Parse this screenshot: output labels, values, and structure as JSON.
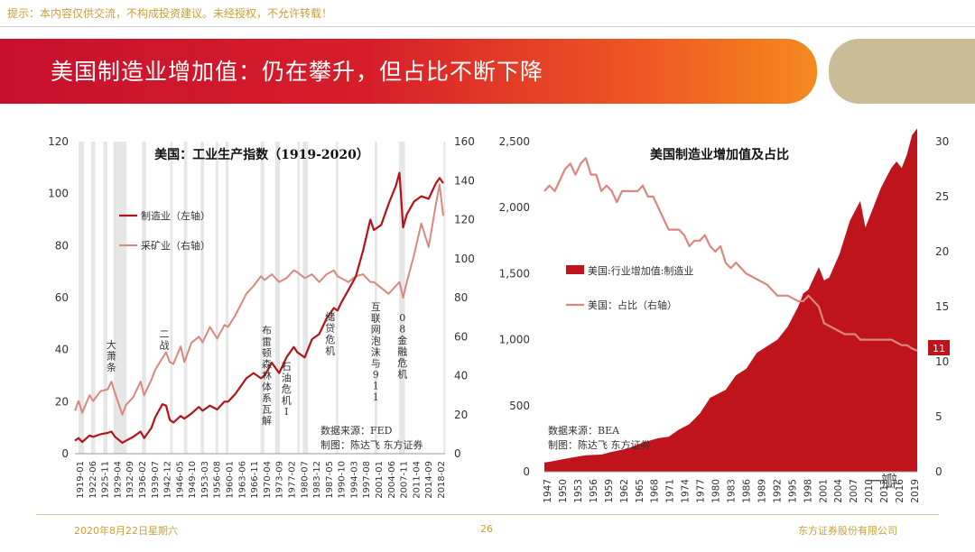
{
  "header": {
    "disclaimer": "提示：本内容仅供交流，不构成投资建议。未经授权，不允许转载！",
    "title": "美国制造业增加值：仍在攀升，但占比不断下降"
  },
  "footer": {
    "date": "2020年8月22日星期六",
    "page": "26",
    "company": "东方证券股份有限公司"
  },
  "watermark": "一瓣",
  "colors": {
    "dark_red": "#b3131b",
    "pink": "#d98880",
    "area_red": "#c0141c",
    "recession_gray": "#e6e6e6"
  },
  "chart_data": [
    {
      "type": "line",
      "title": "美国：工业生产指数（1919-2020）",
      "ylim_left": [
        0,
        120
      ],
      "yticks_left": [
        "0",
        "20",
        "40",
        "60",
        "80",
        "100",
        "120"
      ],
      "ylim_right": [
        0,
        160
      ],
      "yticks_right": [
        "0",
        "20",
        "40",
        "60",
        "80",
        "100",
        "120",
        "140",
        "160"
      ],
      "x_range": [
        1919.0,
        2020.5
      ],
      "x_tick_labels": [
        "1919-01",
        "1922-06",
        "1925-11",
        "1929-04",
        "1932-09",
        "1936-02",
        "1939-07",
        "1942-12",
        "1946-05",
        "1949-10",
        "1953-03",
        "1956-08",
        "1960-01",
        "1963-06",
        "1966-11",
        "1970-04",
        "1973-09",
        "1977-02",
        "1980-07",
        "1983-12",
        "1987-05",
        "1990-10",
        "1994-03",
        "1997-08",
        "2001-01",
        "2004-06",
        "2007-11",
        "2011-04",
        "2014-09",
        "2018-02"
      ],
      "recessions": [
        [
          1920.0,
          1921.5
        ],
        [
          1923.4,
          1924.6
        ],
        [
          1926.8,
          1927.9
        ],
        [
          1929.6,
          1933.2
        ],
        [
          1937.4,
          1938.5
        ],
        [
          1945.1,
          1945.8
        ],
        [
          1948.9,
          1949.8
        ],
        [
          1953.5,
          1954.4
        ],
        [
          1957.6,
          1958.3
        ],
        [
          1960.3,
          1961.1
        ],
        [
          1969.9,
          1970.9
        ],
        [
          1973.9,
          1975.2
        ],
        [
          1980.0,
          1980.6
        ],
        [
          1981.5,
          1982.9
        ],
        [
          1990.6,
          1991.2
        ],
        [
          2001.2,
          2001.9
        ],
        [
          2007.9,
          2009.5
        ],
        [
          2020.1,
          2020.4
        ]
      ],
      "series": [
        {
          "name": "制造业（左轴）",
          "axis": "left",
          "x": [
            1919,
            1920,
            1921,
            1923,
            1924,
            1926,
            1928,
            1929,
            1930,
            1932,
            1933,
            1935,
            1937,
            1938,
            1940,
            1941,
            1943,
            1944,
            1945,
            1946,
            1948,
            1949,
            1951,
            1953,
            1954,
            1956,
            1958,
            1960,
            1961,
            1963,
            1966,
            1968,
            1970,
            1971,
            1973,
            1975,
            1977,
            1979,
            1980,
            1982,
            1984,
            1986,
            1988,
            1990,
            1991,
            1992,
            1994,
            1996,
            1998,
            2000,
            2001,
            2003,
            2005,
            2007,
            2008,
            2009,
            2010,
            2012,
            2014,
            2016,
            2018,
            2019,
            2020
          ],
          "values": [
            5,
            6,
            4.5,
            7,
            6.5,
            7.5,
            8,
            8.5,
            6.5,
            4.2,
            5,
            6.5,
            8.5,
            6,
            10,
            14,
            19,
            18.5,
            13,
            12,
            14.5,
            13.5,
            15.5,
            18,
            16.5,
            18.5,
            17,
            20,
            20,
            23,
            29,
            31,
            29,
            30,
            35,
            31,
            37,
            41,
            39,
            37,
            44,
            46,
            52,
            56,
            55,
            58,
            63,
            68,
            78,
            90,
            86,
            88,
            96,
            103,
            108,
            87,
            92,
            97,
            99,
            98,
            104,
            106,
            104
          ]
        },
        {
          "name": "采矿业（右轴）",
          "axis": "right",
          "x": [
            1919,
            1920,
            1921,
            1923,
            1924,
            1926,
            1928,
            1929,
            1930,
            1932,
            1933,
            1935,
            1937,
            1938,
            1940,
            1941,
            1943,
            1944,
            1945,
            1946,
            1948,
            1949,
            1951,
            1953,
            1954,
            1956,
            1958,
            1960,
            1961,
            1963,
            1966,
            1968,
            1970,
            1971,
            1973,
            1975,
            1977,
            1979,
            1980,
            1982,
            1984,
            1986,
            1988,
            1990,
            1991,
            1992,
            1994,
            1996,
            1998,
            2000,
            2001,
            2003,
            2005,
            2007,
            2008,
            2009,
            2010,
            2012,
            2014,
            2016,
            2018,
            2019,
            2020
          ],
          "values": [
            22,
            27,
            21,
            30,
            27,
            32,
            33,
            37,
            31,
            20,
            25,
            29,
            37,
            30,
            38,
            43,
            49,
            52,
            47,
            46,
            55,
            47,
            57,
            60,
            57,
            65,
            59,
            66,
            65,
            71,
            82,
            86,
            91,
            89,
            92,
            88,
            90,
            94,
            93,
            90,
            92,
            88,
            92,
            94,
            91,
            90,
            88,
            91,
            92,
            88,
            88,
            85,
            82,
            86,
            88,
            80,
            88,
            102,
            118,
            106,
            128,
            138,
            122
          ]
        }
      ],
      "annotations": [
        {
          "text": "大萧条",
          "x": 1929.0
        },
        {
          "text": "二战",
          "x": 1943.5
        },
        {
          "text": "布雷顿森林体系瓦解",
          "x": 1971.6
        },
        {
          "text": "石油危机Ⅰ",
          "x": 1977.0
        },
        {
          "text": "储贷危机",
          "x": 1989.0
        },
        {
          "text": "互联网泡沫与911",
          "x": 2001.5
        },
        {
          "text": "08金融危机",
          "x": 2008.8
        }
      ],
      "source": "数据来源：FED",
      "maker": "制图：陈达飞  东方证券"
    },
    {
      "type": "area",
      "title": "美国制造业增加值及占比",
      "ylim_left": [
        0,
        2500
      ],
      "yticks_left": [
        "0",
        "500",
        "1,000",
        "1,500",
        "2,000",
        "2,500"
      ],
      "ylim_right": [
        0,
        30
      ],
      "yticks_right": [
        "0",
        "5",
        "10",
        "15",
        "20",
        "25",
        "30"
      ],
      "x_range": [
        1947,
        2019
      ],
      "x_tick_labels": [
        "1947",
        "1950",
        "1953",
        "1956",
        "1959",
        "1962",
        "1965",
        "1968",
        "1971",
        "1974",
        "1977",
        "1980",
        "1983",
        "1986",
        "1989",
        "1992",
        "1995",
        "1998",
        "2001",
        "2004",
        "2007",
        "2010",
        "2013",
        "2016",
        "2019"
      ],
      "series": [
        {
          "name": "美国:行业增加值:制造业",
          "axis": "left",
          "type": "area",
          "x": [
            1947,
            1948,
            1950,
            1952,
            1955,
            1958,
            1960,
            1963,
            1966,
            1969,
            1971,
            1973,
            1975,
            1977,
            1979,
            1980,
            1982,
            1984,
            1986,
            1988,
            1990,
            1992,
            1994,
            1996,
            1997,
            1998,
            2000,
            2001,
            2002,
            2003,
            2004,
            2006,
            2008,
            2009,
            2010,
            2012,
            2014,
            2015,
            2016,
            2017,
            2018,
            2019
          ],
          "values": [
            70,
            75,
            90,
            105,
            125,
            130,
            150,
            175,
            220,
            255,
            265,
            320,
            360,
            440,
            560,
            580,
            620,
            730,
            780,
            900,
            950,
            1000,
            1100,
            1250,
            1350,
            1380,
            1550,
            1450,
            1470,
            1560,
            1650,
            1900,
            2050,
            1850,
            1950,
            2150,
            2300,
            2350,
            2300,
            2400,
            2550,
            2600
          ]
        },
        {
          "name": "美国：占比（右轴）",
          "axis": "right",
          "type": "line",
          "x": [
            1947,
            1948,
            1949,
            1951,
            1952,
            1953,
            1954,
            1955,
            1956,
            1957,
            1958,
            1959,
            1960,
            1961,
            1962,
            1963,
            1965,
            1966,
            1967,
            1968,
            1969,
            1970,
            1971,
            1973,
            1974,
            1975,
            1976,
            1977,
            1978,
            1979,
            1980,
            1981,
            1982,
            1983,
            1984,
            1986,
            1988,
            1990,
            1992,
            1994,
            1996,
            1997,
            1998,
            1999,
            2000,
            2001,
            2003,
            2005,
            2007,
            2008,
            2009,
            2010,
            2012,
            2014,
            2016,
            2017,
            2018,
            2019
          ],
          "values": [
            25.5,
            26,
            25.5,
            27.5,
            28,
            27,
            28,
            28.5,
            27,
            27,
            25.5,
            26,
            25.5,
            24.5,
            25.5,
            25.5,
            25.5,
            26,
            25,
            25,
            24,
            23,
            22,
            22,
            21.5,
            20.5,
            21,
            21,
            21.5,
            20.5,
            20,
            20.5,
            19,
            18.5,
            19,
            18,
            17.5,
            17,
            16,
            16,
            15.5,
            15.5,
            16,
            15.5,
            15,
            13.5,
            13,
            12.5,
            12.5,
            12,
            12,
            12,
            12,
            12,
            11.5,
            11.5,
            11.2,
            11
          ],
          "end_label": "11"
        }
      ],
      "source": "数据来源：BEA",
      "maker": "制图：陈达飞  东方证券"
    }
  ]
}
